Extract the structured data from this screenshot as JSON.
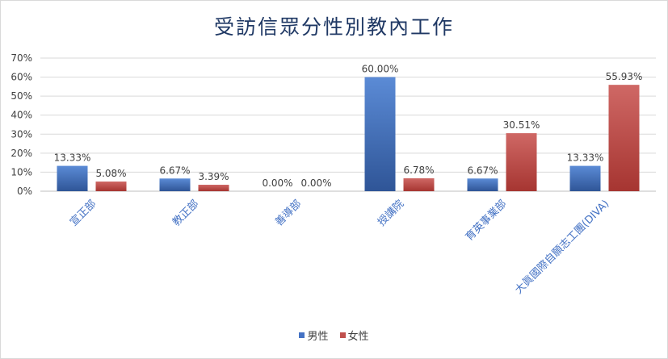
{
  "chart_data": {
    "type": "bar",
    "title": "受訪信眾分性別教內工作",
    "categories": [
      "宣正部",
      "教正部",
      "善導部",
      "授講院",
      "育英事業部",
      "大眞國際自願志工團(DIVA)"
    ],
    "series": [
      {
        "name": "男性",
        "values": [
          13.33,
          6.67,
          0.0,
          60.0,
          6.67,
          13.33
        ],
        "color": "#4472c4"
      },
      {
        "name": "女性",
        "values": [
          5.08,
          3.39,
          0.0,
          6.78,
          30.51,
          55.93
        ],
        "color": "#c0504d"
      }
    ],
    "data_labels": [
      [
        "13.33%",
        "6.67%",
        "0.00%",
        "60.00%",
        "6.67%",
        "13.33%"
      ],
      [
        "5.08%",
        "3.39%",
        "0.00%",
        "6.78%",
        "30.51%",
        "55.93%"
      ]
    ],
    "y_ticks": [
      "0%",
      "10%",
      "20%",
      "30%",
      "40%",
      "50%",
      "60%",
      "70%"
    ],
    "ylim": [
      0,
      70
    ],
    "xlabel": "",
    "ylabel": "",
    "grid": true,
    "legend": "bottom"
  }
}
